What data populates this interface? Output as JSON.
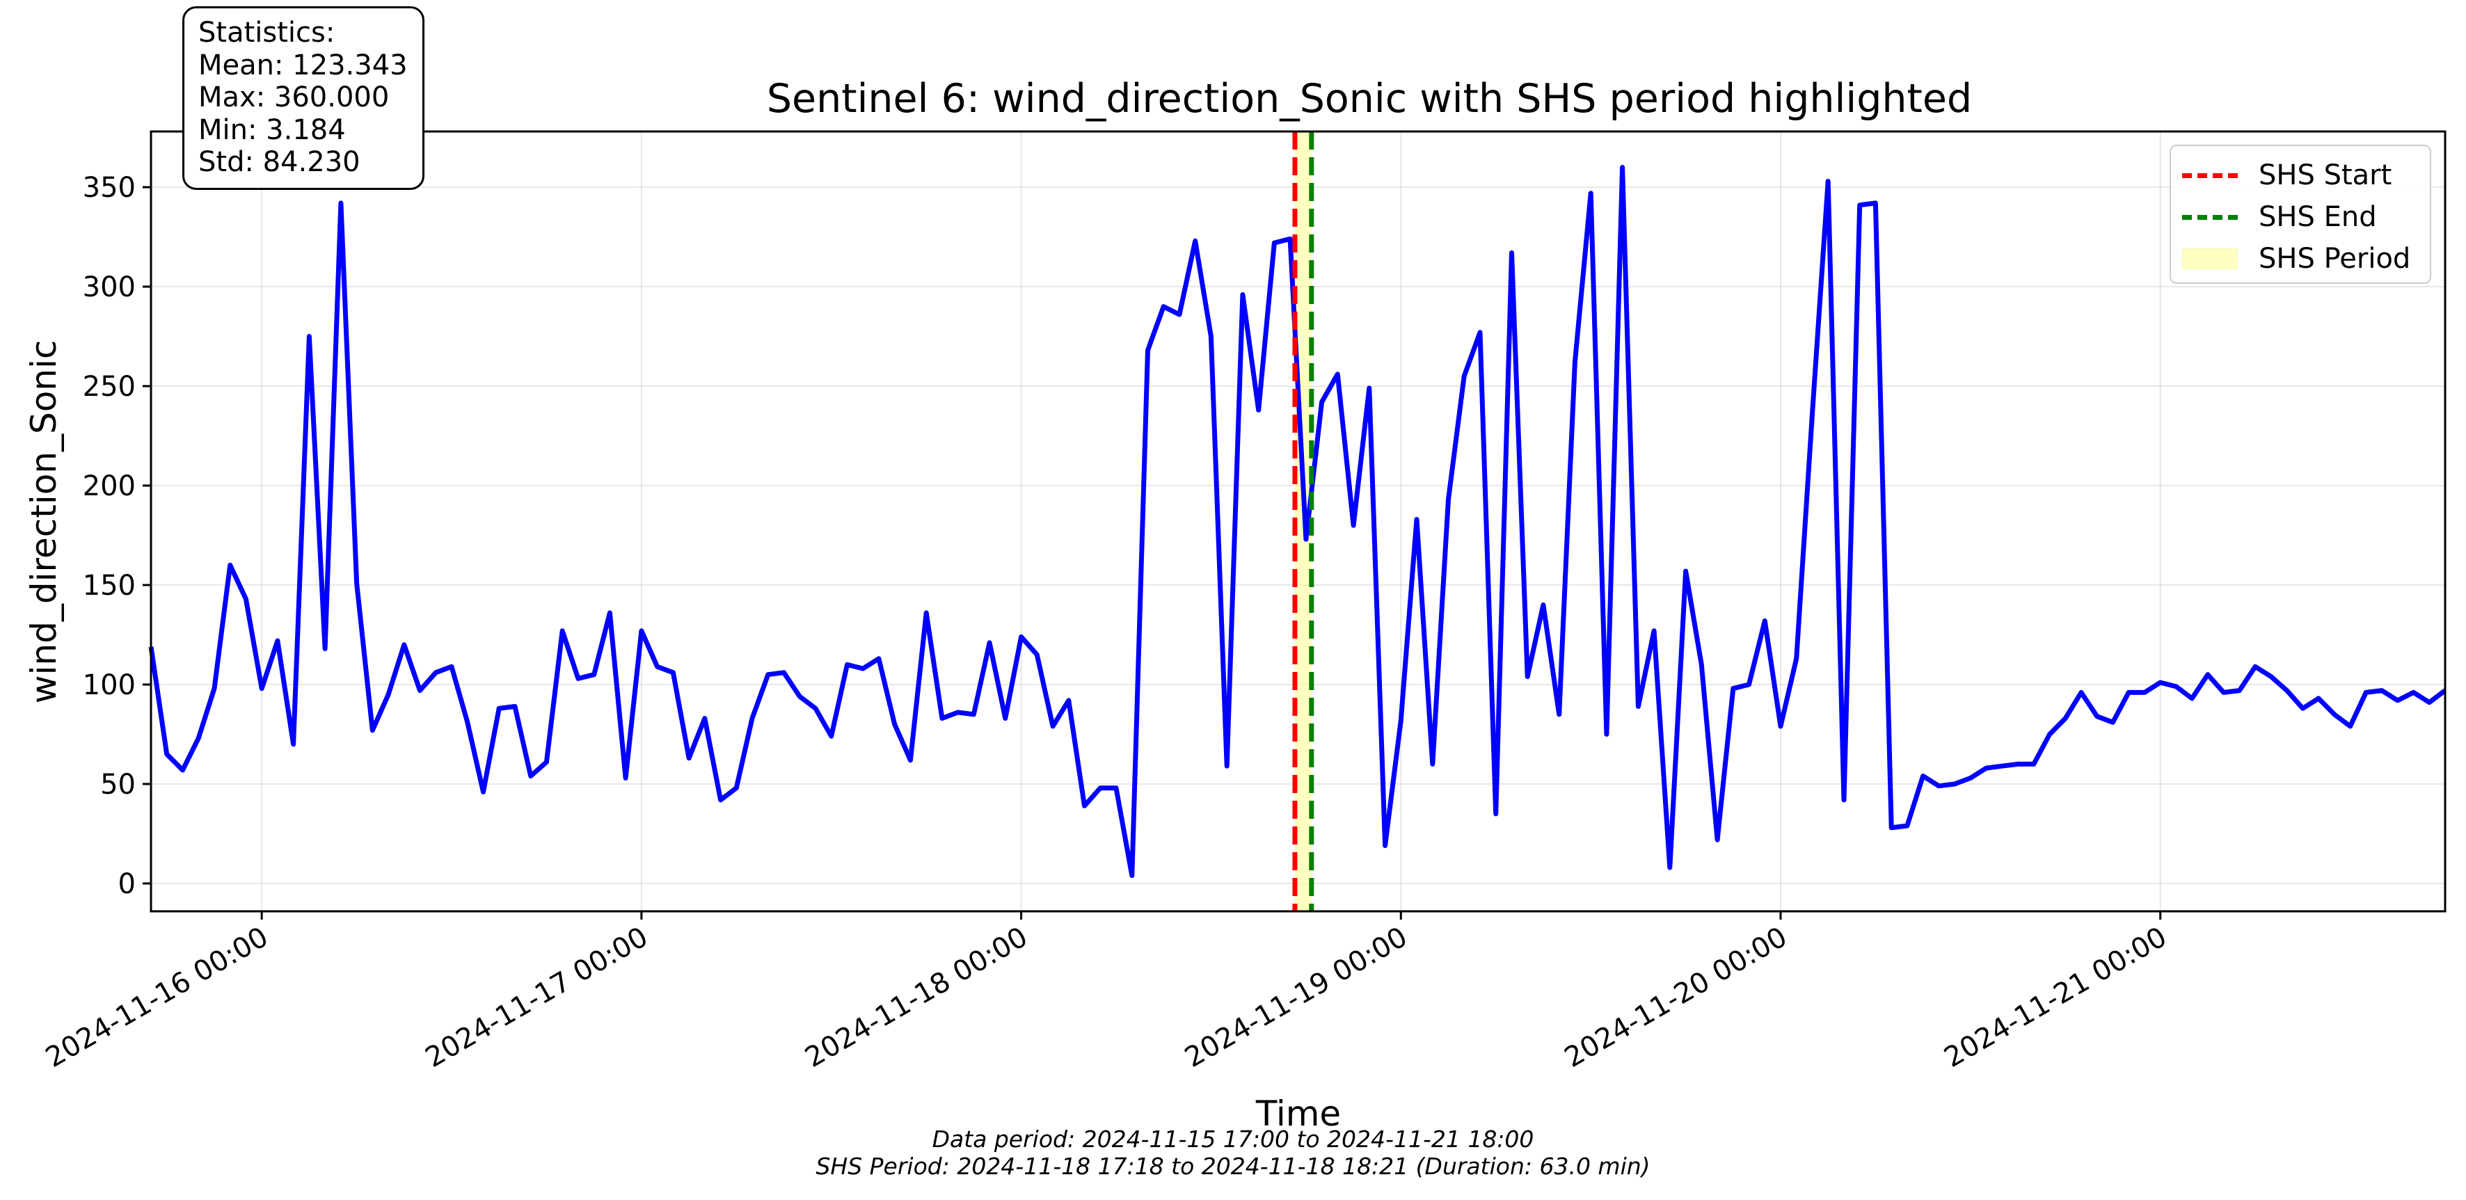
{
  "chart_data": {
    "type": "line",
    "title": "Sentinel 6: wind_direction_Sonic with SHS period highlighted",
    "xlabel": "Time",
    "ylabel": "wind_direction_Sonic",
    "xlim": [
      "2024-11-15 17:00",
      "2024-11-21 18:00"
    ],
    "ylim": [
      -14,
      378
    ],
    "x_ticks": [
      "2024-11-16 00:00",
      "2024-11-17 00:00",
      "2024-11-18 00:00",
      "2024-11-19 00:00",
      "2024-11-20 00:00",
      "2024-11-21 00:00"
    ],
    "y_ticks": [
      0,
      50,
      100,
      150,
      200,
      250,
      300,
      350
    ],
    "grid": true,
    "legend_position": "top-right",
    "series": [
      {
        "name": "wind_direction_Sonic",
        "color": "#0000ff",
        "x_start": "2024-11-15 17:00",
        "x_step_minutes": 60,
        "values": [
          119,
          65,
          57,
          73,
          98,
          160,
          143,
          98,
          122,
          70,
          275,
          118,
          342,
          151,
          77,
          95,
          120,
          97,
          106,
          109,
          81,
          46,
          88,
          89,
          54,
          61,
          127,
          103,
          105,
          136,
          53,
          127,
          109,
          106,
          63,
          83,
          42,
          48,
          83,
          105,
          106,
          94,
          88,
          74,
          110,
          108,
          113,
          80,
          62,
          136,
          83,
          86,
          85,
          121,
          83,
          124,
          115,
          79,
          92,
          39,
          48,
          48,
          4,
          268,
          290,
          286,
          323,
          275,
          59,
          296,
          238,
          322,
          324,
          173,
          242,
          256,
          180,
          249,
          19,
          82,
          183,
          60,
          193,
          255,
          277,
          35,
          317,
          104,
          140,
          85,
          262,
          347,
          75,
          360,
          89,
          127,
          8,
          157,
          110,
          22,
          98,
          100,
          132,
          79,
          113,
          236,
          353,
          42,
          341,
          342,
          28,
          29,
          54,
          49,
          50,
          53,
          58,
          59,
          60,
          60,
          75,
          83,
          96,
          84,
          81,
          96,
          96,
          101,
          99,
          93,
          105,
          96,
          97,
          109,
          104,
          97,
          88,
          93,
          85,
          79,
          96,
          97,
          92,
          96,
          91,
          97
        ]
      }
    ],
    "legend": [
      {
        "label": "SHS Start",
        "color": "#ff0000",
        "style": "dashed"
      },
      {
        "label": "SHS End",
        "color": "#008000",
        "style": "dashed"
      },
      {
        "label": "SHS Period",
        "color": "#ffff99",
        "style": "patch"
      }
    ],
    "shs_start": "2024-11-18 17:18",
    "shs_end": "2024-11-18 18:21",
    "statistics": {
      "header": "Statistics:",
      "mean": "Mean: 123.343",
      "max": "Max: 360.000",
      "min": "Min: 3.184",
      "std": "Std: 84.230"
    },
    "footnote_1": "Data period: 2024-11-15 17:00 to 2024-11-21 18:00",
    "footnote_2": "SHS Period: 2024-11-18 17:18 to 2024-11-18 18:21 (Duration: 63.0 min)"
  }
}
